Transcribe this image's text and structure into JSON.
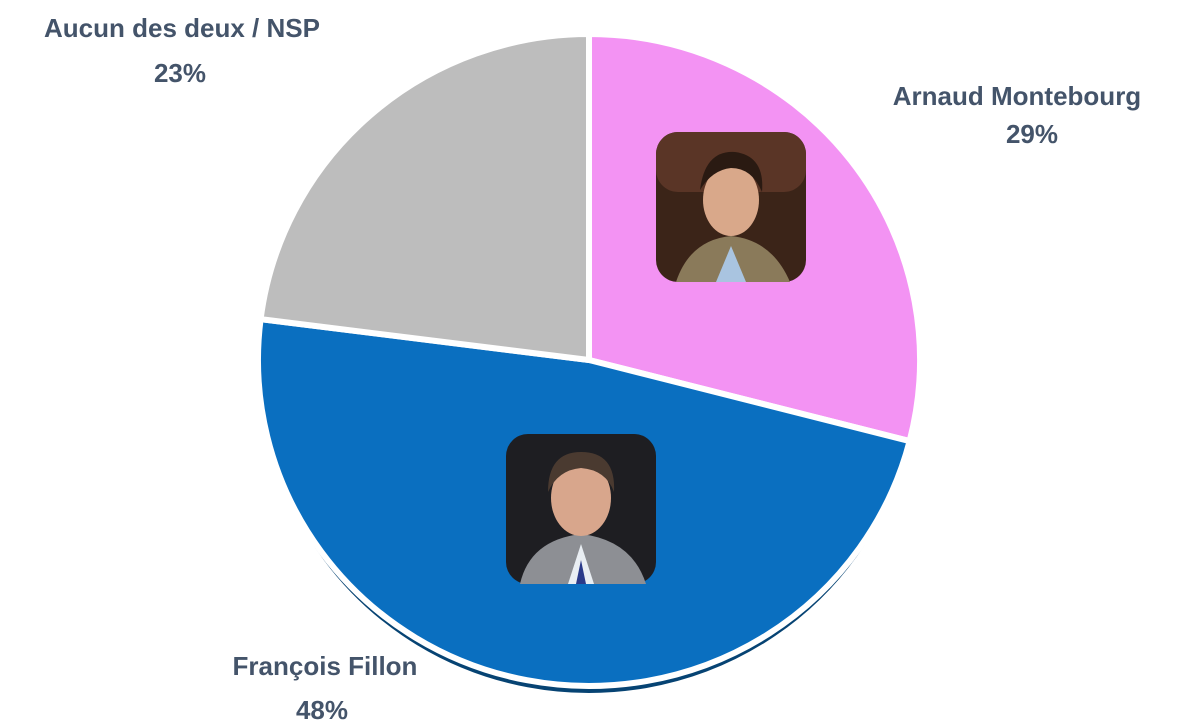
{
  "chart_data": {
    "type": "pie",
    "categories": [
      "Arnaud Montebourg",
      "François Fillon",
      "Aucun des deux / NSP"
    ],
    "values": [
      29,
      48,
      23
    ],
    "value_labels": [
      "29%",
      "48%",
      "23%"
    ],
    "colors": [
      "#f393f3",
      "#0a6fc0",
      "#bdbdbd"
    ]
  }
}
